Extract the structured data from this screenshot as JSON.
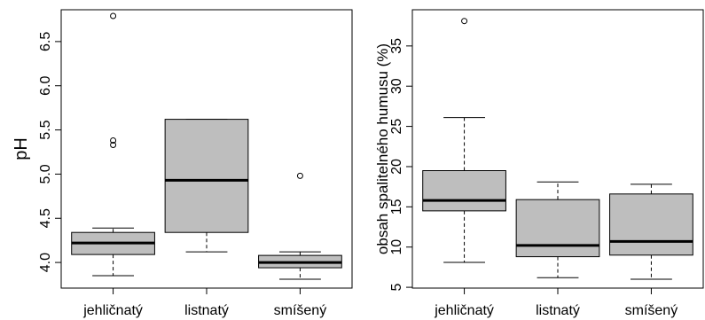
{
  "chart_data": [
    {
      "type": "boxplot",
      "xlabel": "",
      "ylabel": "pH",
      "ylim": [
        3.71,
        6.86
      ],
      "yticks": [
        4.0,
        4.5,
        5.0,
        5.5,
        6.0,
        6.5
      ],
      "ytick_labels": [
        "4.0",
        "4.5",
        "5.0",
        "5.5",
        "6.0",
        "6.5"
      ],
      "categories": [
        "jehličnatý",
        "listnatý",
        "smíšený"
      ],
      "boxes": [
        {
          "category": "jehličnatý",
          "whisker_low": 3.85,
          "q1": 4.09,
          "median": 4.22,
          "q3": 4.34,
          "whisker_high": 4.39,
          "outliers": [
            5.33,
            5.38,
            6.79
          ]
        },
        {
          "category": "listnatý",
          "whisker_low": 4.12,
          "q1": 4.34,
          "median": 4.93,
          "q3": 5.62,
          "whisker_high": 5.62,
          "outliers": []
        },
        {
          "category": "smíšený",
          "whisker_low": 3.81,
          "q1": 3.94,
          "median": 4.0,
          "q3": 4.08,
          "whisker_high": 4.12,
          "outliers": [
            4.98
          ]
        }
      ]
    },
    {
      "type": "boxplot",
      "xlabel": "",
      "ylabel": "obsah spalitelného humusu (%)",
      "ylim": [
        4.9,
        39.5
      ],
      "yticks": [
        5,
        10,
        15,
        20,
        25,
        30,
        35
      ],
      "ytick_labels": [
        "5",
        "10",
        "15",
        "20",
        "25",
        "30",
        "35"
      ],
      "categories": [
        "jehličnatý",
        "listnatý",
        "smíšený"
      ],
      "boxes": [
        {
          "category": "jehličnatý",
          "whisker_low": 8.1,
          "q1": 14.5,
          "median": 15.8,
          "q3": 19.5,
          "whisker_high": 26.1,
          "outliers": [
            38.1
          ]
        },
        {
          "category": "listnatý",
          "whisker_low": 6.2,
          "q1": 8.8,
          "median": 10.2,
          "q3": 15.9,
          "whisker_high": 18.1,
          "outliers": []
        },
        {
          "category": "smíšený",
          "whisker_low": 6.0,
          "q1": 9.0,
          "median": 10.7,
          "q3": 16.6,
          "whisker_high": 17.8,
          "outliers": []
        }
      ]
    }
  ],
  "colors": {
    "box_fill": "#bebebe",
    "stroke": "#000000",
    "background": "#ffffff"
  }
}
